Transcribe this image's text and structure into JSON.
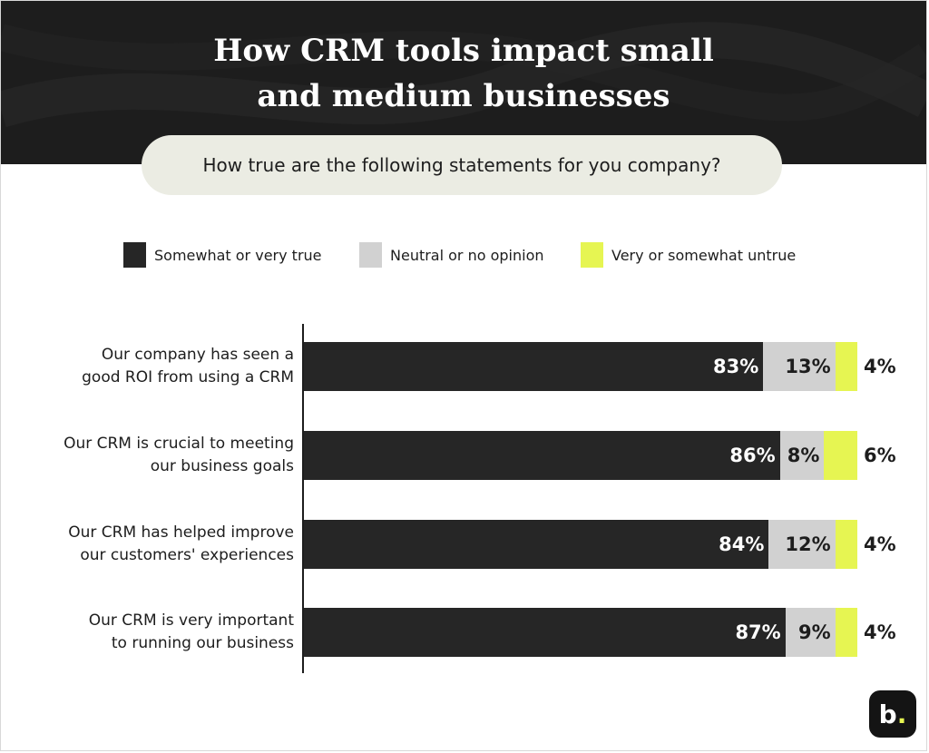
{
  "title_lines": [
    "How CRM tools impact small",
    "and medium businesses"
  ],
  "subtitle": "How true are the following statements for you company?",
  "logo_text": "b",
  "logo_dot": ".",
  "colors": {
    "true": "#262626",
    "neutral": "#d1d1d1",
    "untrue": "#e6f552",
    "header": "#1d1d1d",
    "pill": "#ebece3"
  },
  "chart_data": {
    "type": "bar",
    "orientation": "horizontal",
    "stacked": true,
    "xlim": [
      0,
      100
    ],
    "legend_placement": "top",
    "categories": [
      [
        "Our company has seen a",
        "good ROI from using a CRM"
      ],
      [
        "Our CRM is crucial to meeting",
        "our business goals"
      ],
      [
        "Our CRM has helped improve",
        "our customers' experiences"
      ],
      [
        "Our CRM is very important",
        "to running our business"
      ]
    ],
    "series": [
      {
        "name": "Somewhat or very true",
        "values": [
          83,
          86,
          84,
          87
        ],
        "labels": [
          "83%",
          "86%",
          "84%",
          "87%"
        ]
      },
      {
        "name": "Neutral or no opinion",
        "values": [
          13,
          8,
          12,
          9
        ],
        "labels": [
          "13%",
          "8%",
          "12%",
          "9%"
        ]
      },
      {
        "name": "Very or somewhat untrue",
        "values": [
          4,
          6,
          4,
          4
        ],
        "labels": [
          "4%",
          "6%",
          "4%",
          "4%"
        ]
      }
    ]
  }
}
